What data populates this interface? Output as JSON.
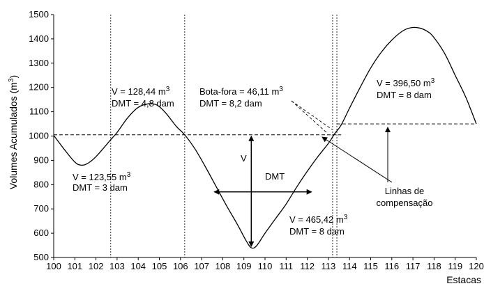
{
  "chart_data": {
    "type": "line",
    "xlabel": "Estacas",
    "ylabel_main": "Volumes Acumulados (m",
    "ylabel_sup": "3",
    "ylabel_close": ")",
    "xlim": [
      100,
      120
    ],
    "ylim": [
      500,
      1500
    ],
    "x_ticks": [
      100,
      101,
      102,
      103,
      104,
      105,
      106,
      107,
      108,
      109,
      110,
      111,
      112,
      113,
      114,
      115,
      116,
      117,
      118,
      119,
      120
    ],
    "y_ticks": [
      500,
      600,
      700,
      800,
      900,
      1000,
      1100,
      1200,
      1300,
      1400,
      1500
    ],
    "grid": false,
    "series": [
      {
        "values_x": [
          100,
          100.5,
          101,
          101.3,
          101.6,
          102,
          102.7,
          103,
          103.5,
          104,
          104.5,
          104.9,
          105.3,
          105.8,
          106.2,
          106.7,
          107.2,
          107.7,
          108.2,
          108.7,
          109.1,
          109.35,
          109.6,
          110,
          110.5,
          111,
          111.5,
          112,
          112.5,
          113,
          113.3,
          113.6,
          114,
          114.5,
          115,
          115.5,
          116,
          116.5,
          116.9,
          117.3,
          117.7,
          118,
          118.5,
          119,
          119.5,
          120
        ],
        "values_y": [
          1003,
          945,
          893,
          880,
          887,
          915,
          985,
          1015,
          1075,
          1118,
          1133,
          1127,
          1095,
          1040,
          1005,
          945,
          870,
          790,
          710,
          635,
          570,
          540,
          548,
          600,
          660,
          720,
          790,
          855,
          915,
          970,
          1010,
          1045,
          1115,
          1200,
          1280,
          1345,
          1395,
          1432,
          1446,
          1445,
          1430,
          1405,
          1340,
          1250,
          1160,
          1050
        ]
      }
    ],
    "dashed_lines": {
      "horizontal": [
        {
          "y": 1005,
          "from_x": 100,
          "to_x": 113.6
        },
        {
          "y": 1050,
          "from_x": 113.4,
          "to_x": 120
        }
      ],
      "vertical": [
        102.7,
        106.2,
        113.2,
        113.4
      ]
    },
    "measure": {
      "v_arrow": {
        "x": 109.35,
        "y_top": 1005,
        "y_bottom": 540
      },
      "dmt_arrow": {
        "y": 770,
        "x_left": 107.6,
        "x_right": 112.2
      },
      "v_label": "V",
      "dmt_label": "DMT"
    },
    "annotations": {
      "a1_v": "V = 123,55 m",
      "a1_sup": "3",
      "a1_dmt": "DMT = 3 dam",
      "a2_v": "V = 128,44 m",
      "a2_sup": "3",
      "a2_dmt": "DMT = 4,8 dam",
      "a3_v": "Bota-fora = 46,11 m",
      "a3_sup": "3",
      "a3_dmt": "DMT = 8,2 dam",
      "a4_v": "V = 396,50 m",
      "a4_sup": "3",
      "a4_dmt": "DMT = 8 dam",
      "a5_v": "V = 465,42 m",
      "a5_sup": "3",
      "a5_dmt": "DMT = 8 dam",
      "linhas_1": "Linhas de",
      "linhas_2": "compensação"
    }
  }
}
